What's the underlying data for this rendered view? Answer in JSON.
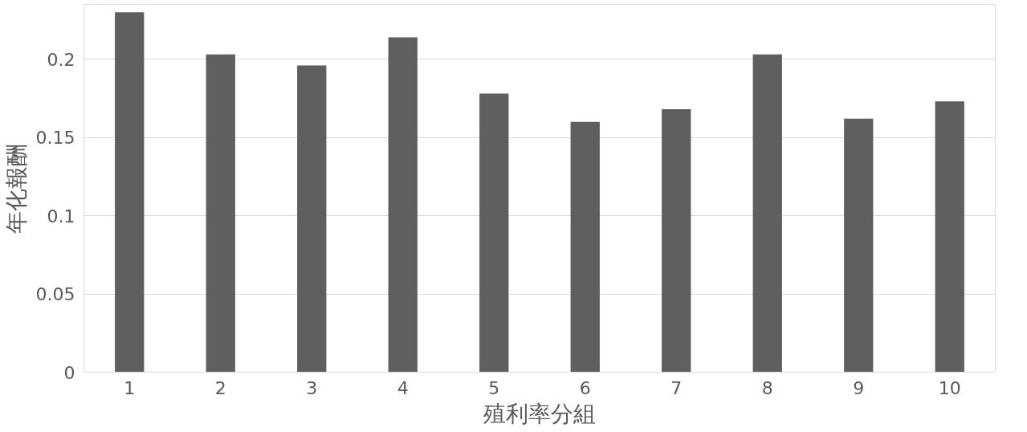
{
  "chart_data": {
    "type": "bar",
    "xlabel": "殖利率分組",
    "ylabel": "年化報酬",
    "categories": [
      "1",
      "2",
      "3",
      "4",
      "5",
      "6",
      "7",
      "8",
      "9",
      "10"
    ],
    "values": [
      0.23,
      0.203,
      0.196,
      0.214,
      0.178,
      0.16,
      0.168,
      0.203,
      0.162,
      0.173
    ],
    "color": "#5f5f5f",
    "ylim": [
      0,
      0.235
    ],
    "yticks": [
      0,
      0.05,
      0.1,
      0.15,
      0.2
    ],
    "grid": "y"
  }
}
